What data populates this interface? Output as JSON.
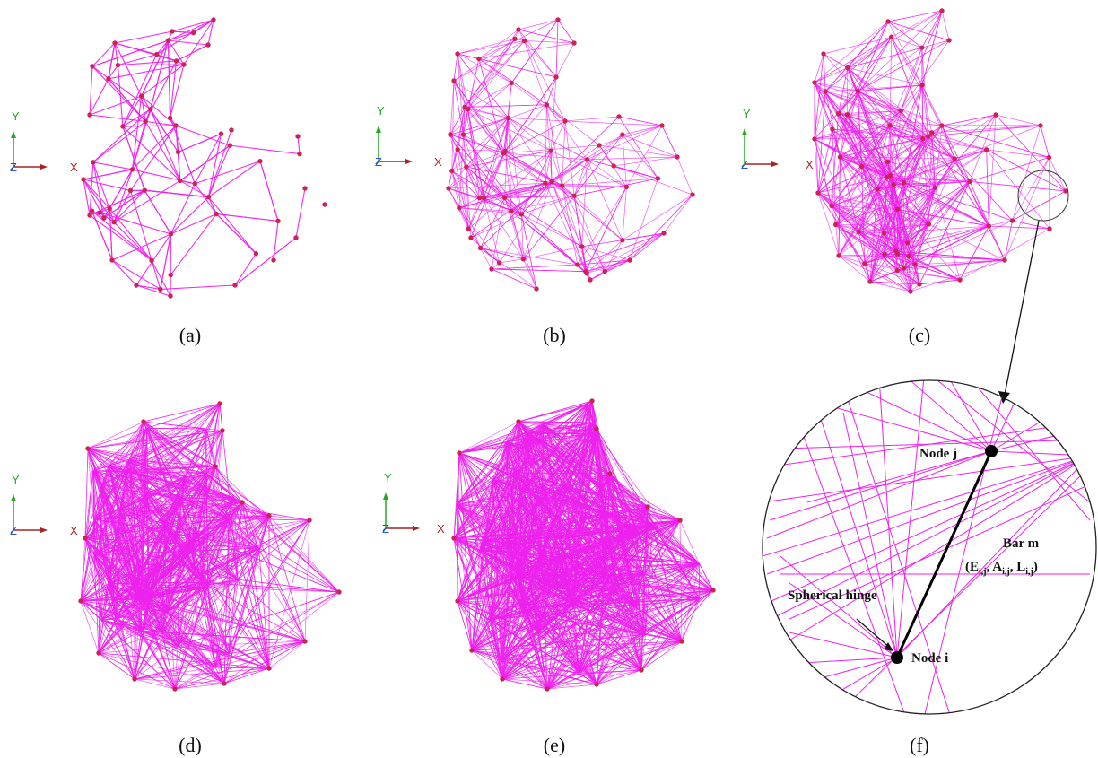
{
  "panels": [
    {
      "id": "a",
      "caption": "(a)",
      "density": "sparse"
    },
    {
      "id": "b",
      "caption": "(b)",
      "density": "medium"
    },
    {
      "id": "c",
      "caption": "(c)",
      "density": "dense"
    },
    {
      "id": "d",
      "caption": "(d)",
      "density": "very-dense"
    },
    {
      "id": "e",
      "caption": "(e)",
      "density": "fully-dense"
    },
    {
      "id": "f",
      "caption": "(f)",
      "density": "zoom-detail"
    }
  ],
  "axes": {
    "y_label": "Y",
    "x_label": "X",
    "z_label": "Z"
  },
  "zoom": {
    "node_j": "Node j",
    "node_i": "Node i",
    "bar_label": "Bar m",
    "bar_props_open": "(E",
    "sub_ij": "i,j",
    "props_A": "A",
    "props_L": "L",
    "hinge_label": "Spherical hinge"
  },
  "colors": {
    "bar": "#ee22ee",
    "node": "#cc2255",
    "axis_x": "#aa2222",
    "axis_y": "#22aa22",
    "axis_z": "#2255cc",
    "black": "#000000"
  }
}
